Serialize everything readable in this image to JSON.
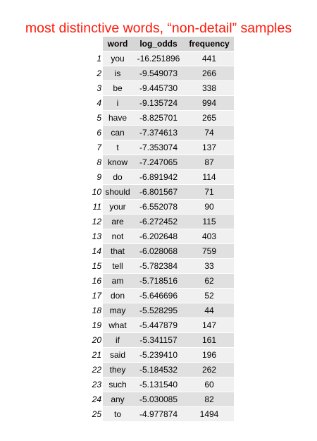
{
  "title": "most distinctive words, “non-detail” samples",
  "colors": {
    "title": "#ff1a0a",
    "header_bg": "#d6d6d6",
    "row_light": "#f0f0f0",
    "row_dark": "#e0e0e0"
  },
  "table": {
    "headers": [
      "word",
      "log_odds",
      "frequency"
    ],
    "rows": [
      {
        "index": "1",
        "word": "you",
        "log_odds": "-16.251896",
        "frequency": "441"
      },
      {
        "index": "2",
        "word": "is",
        "log_odds": "-9.549073",
        "frequency": "266"
      },
      {
        "index": "3",
        "word": "be",
        "log_odds": "-9.445730",
        "frequency": "338"
      },
      {
        "index": "4",
        "word": "i",
        "log_odds": "-9.135724",
        "frequency": "994"
      },
      {
        "index": "5",
        "word": "have",
        "log_odds": "-8.825701",
        "frequency": "265"
      },
      {
        "index": "6",
        "word": "can",
        "log_odds": "-7.374613",
        "frequency": "74"
      },
      {
        "index": "7",
        "word": "t",
        "log_odds": "-7.353074",
        "frequency": "137"
      },
      {
        "index": "8",
        "word": "know",
        "log_odds": "-7.247065",
        "frequency": "87"
      },
      {
        "index": "9",
        "word": "do",
        "log_odds": "-6.891942",
        "frequency": "114"
      },
      {
        "index": "10",
        "word": "should",
        "log_odds": "-6.801567",
        "frequency": "71"
      },
      {
        "index": "11",
        "word": "your",
        "log_odds": "-6.552078",
        "frequency": "90"
      },
      {
        "index": "12",
        "word": "are",
        "log_odds": "-6.272452",
        "frequency": "115"
      },
      {
        "index": "13",
        "word": "not",
        "log_odds": "-6.202648",
        "frequency": "403"
      },
      {
        "index": "14",
        "word": "that",
        "log_odds": "-6.028068",
        "frequency": "759"
      },
      {
        "index": "15",
        "word": "tell",
        "log_odds": "-5.782384",
        "frequency": "33"
      },
      {
        "index": "16",
        "word": "am",
        "log_odds": "-5.718516",
        "frequency": "62"
      },
      {
        "index": "17",
        "word": "don",
        "log_odds": "-5.646696",
        "frequency": "52"
      },
      {
        "index": "18",
        "word": "may",
        "log_odds": "-5.528295",
        "frequency": "44"
      },
      {
        "index": "19",
        "word": "what",
        "log_odds": "-5.447879",
        "frequency": "147"
      },
      {
        "index": "20",
        "word": "if",
        "log_odds": "-5.341157",
        "frequency": "161"
      },
      {
        "index": "21",
        "word": "said",
        "log_odds": "-5.239410",
        "frequency": "196"
      },
      {
        "index": "22",
        "word": "they",
        "log_odds": "-5.184532",
        "frequency": "262"
      },
      {
        "index": "23",
        "word": "such",
        "log_odds": "-5.131540",
        "frequency": "60"
      },
      {
        "index": "24",
        "word": "any",
        "log_odds": "-5.030085",
        "frequency": "82"
      },
      {
        "index": "25",
        "word": "to",
        "log_odds": "-4.977874",
        "frequency": "1494"
      }
    ]
  }
}
